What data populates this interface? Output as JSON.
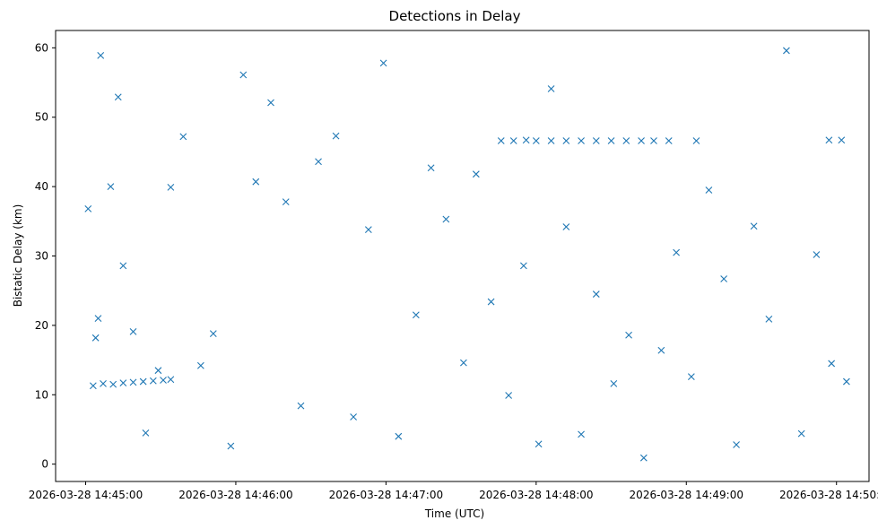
{
  "chart_data": {
    "type": "scatter",
    "title": "Detections in Delay",
    "xlabel": "Time (UTC)",
    "ylabel": "Bistatic Delay (km)",
    "xlim": [
      "2026-03-28 14:44:48",
      "2026-03-28 14:50:13"
    ],
    "ylim": [
      -2.5,
      62.5
    ],
    "x_ticks": [
      "2026-03-28 14:45:00",
      "2026-03-28 14:46:00",
      "2026-03-28 14:47:00",
      "2026-03-28 14:48:00",
      "2026-03-28 14:49:00",
      "2026-03-28 14:50:00"
    ],
    "y_ticks": [
      0,
      10,
      20,
      30,
      40,
      50,
      60
    ],
    "grid": false,
    "marker": "x",
    "color": "#1f77b4",
    "series": [
      {
        "x": [
          "2026-03-28 14:45:01",
          "2026-03-28 14:45:04",
          "2026-03-28 14:45:05",
          "2026-03-28 14:45:06",
          "2026-03-28 14:45:10",
          "2026-03-28 14:45:13",
          "2026-03-28 14:45:15",
          "2026-03-28 14:45:19",
          "2026-03-28 14:45:24",
          "2026-03-28 14:45:29",
          "2026-03-28 14:45:34",
          "2026-03-28 14:45:39",
          "2026-03-28 14:45:46",
          "2026-03-28 14:45:51",
          "2026-03-28 14:45:58",
          "2026-03-28 14:46:03",
          "2026-03-28 14:46:08",
          "2026-03-28 14:46:14",
          "2026-03-28 14:46:20",
          "2026-03-28 14:46:26",
          "2026-03-28 14:46:33",
          "2026-03-28 14:46:40",
          "2026-03-28 14:46:47",
          "2026-03-28 14:46:53",
          "2026-03-28 14:46:59",
          "2026-03-28 14:47:05",
          "2026-03-28 14:47:12",
          "2026-03-28 14:47:18",
          "2026-03-28 14:47:24",
          "2026-03-28 14:47:31",
          "2026-03-28 14:47:36",
          "2026-03-28 14:47:42",
          "2026-03-28 14:47:49",
          "2026-03-28 14:47:55",
          "2026-03-28 14:48:01",
          "2026-03-28 14:48:06",
          "2026-03-28 14:48:12",
          "2026-03-28 14:48:18",
          "2026-03-28 14:48:24",
          "2026-03-28 14:48:31",
          "2026-03-28 14:48:37",
          "2026-03-28 14:48:43",
          "2026-03-28 14:48:50",
          "2026-03-28 14:48:56",
          "2026-03-28 14:49:02",
          "2026-03-28 14:49:09",
          "2026-03-28 14:49:15",
          "2026-03-28 14:49:20",
          "2026-03-28 14:49:27",
          "2026-03-28 14:49:33",
          "2026-03-28 14:49:40",
          "2026-03-28 14:49:46",
          "2026-03-28 14:49:52",
          "2026-03-28 14:49:58",
          "2026-03-28 14:50:04"
        ],
        "y": [
          36.8,
          18.2,
          21.0,
          58.9,
          40.0,
          52.9,
          28.6,
          19.1,
          4.5,
          13.5,
          39.9,
          47.2,
          14.2,
          18.8,
          2.6,
          56.1,
          40.7,
          52.1,
          37.8,
          8.4,
          43.6,
          47.3,
          6.8,
          33.8,
          57.8,
          4.0,
          21.5,
          42.7,
          35.3,
          14.6,
          41.8,
          23.4,
          9.9,
          28.6,
          2.9,
          54.1,
          34.2,
          4.3,
          24.5,
          11.6,
          18.6,
          0.9,
          16.4,
          30.5,
          12.6,
          39.5,
          26.7,
          2.8,
          34.3,
          20.9,
          59.6,
          4.4,
          30.2,
          14.5,
          11.9
        ]
      },
      {
        "x": [
          "2026-03-28 14:45:03",
          "2026-03-28 14:45:07",
          "2026-03-28 14:45:11",
          "2026-03-28 14:45:15",
          "2026-03-28 14:45:19",
          "2026-03-28 14:45:23",
          "2026-03-28 14:45:27",
          "2026-03-28 14:45:31",
          "2026-03-28 14:45:34"
        ],
        "y": [
          11.3,
          11.6,
          11.5,
          11.7,
          11.8,
          11.9,
          12.0,
          12.1,
          12.2
        ]
      },
      {
        "x": [
          "2026-03-28 14:47:46",
          "2026-03-28 14:47:51",
          "2026-03-28 14:47:56",
          "2026-03-28 14:48:00",
          "2026-03-28 14:48:06",
          "2026-03-28 14:48:12",
          "2026-03-28 14:48:18",
          "2026-03-28 14:48:24",
          "2026-03-28 14:48:30",
          "2026-03-28 14:48:36",
          "2026-03-28 14:48:42",
          "2026-03-28 14:48:47",
          "2026-03-28 14:48:53",
          "2026-03-28 14:49:04",
          "2026-03-28 14:49:57",
          "2026-03-28 14:50:02"
        ],
        "y": [
          46.6,
          46.6,
          46.7,
          46.6,
          46.6,
          46.6,
          46.6,
          46.6,
          46.6,
          46.6,
          46.6,
          46.6,
          46.6,
          46.6,
          46.7,
          46.7
        ]
      }
    ]
  }
}
